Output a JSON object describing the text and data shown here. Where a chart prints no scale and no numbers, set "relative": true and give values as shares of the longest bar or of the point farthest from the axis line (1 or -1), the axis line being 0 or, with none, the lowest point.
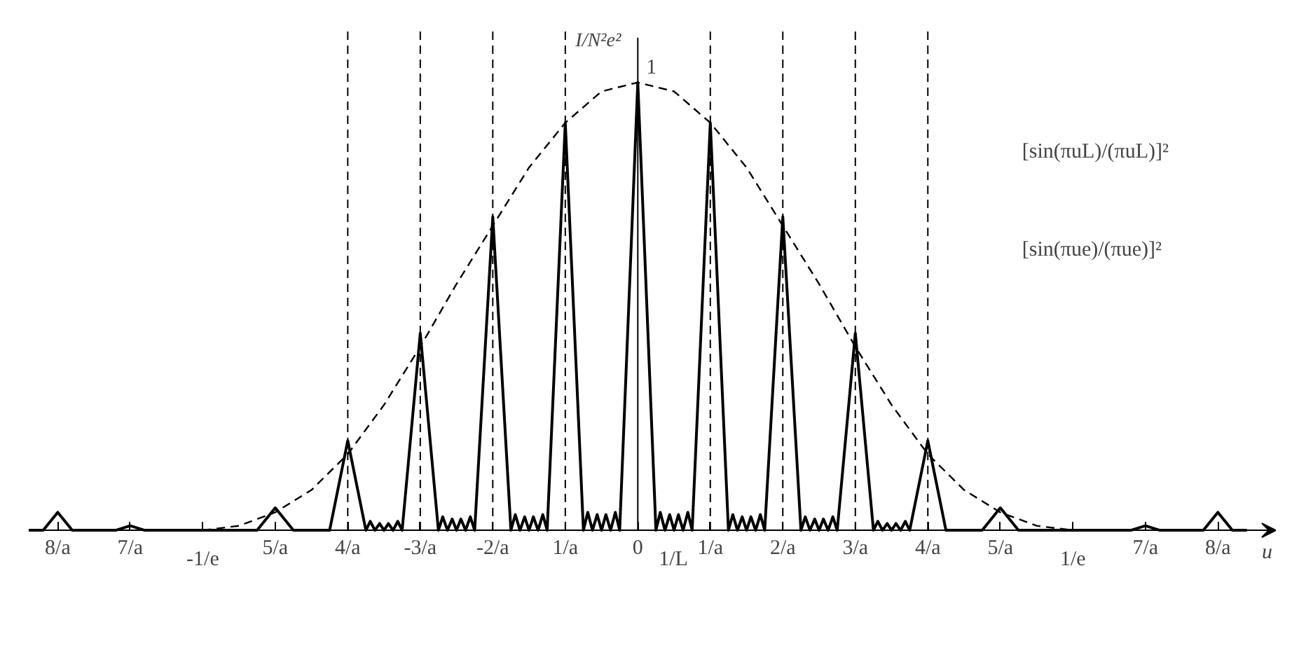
{
  "chart_data": {
    "type": "line",
    "relative": true,
    "xlabel": "u",
    "ylabel": "I/N²e²",
    "xlim": [
      -8.4,
      8.8
    ],
    "xticks": [
      {
        "value": -8,
        "label": "8/a"
      },
      {
        "value": -7,
        "label": "7/a"
      },
      {
        "value": -6,
        "label": null
      },
      {
        "value": -5,
        "label": "5/a"
      },
      {
        "value": -4,
        "label": "4/a"
      },
      {
        "value": -3,
        "label": "-3/a"
      },
      {
        "value": -2,
        "label": "-2/a"
      },
      {
        "value": -1,
        "label": "1/a"
      },
      {
        "value": 0,
        "label": "0"
      },
      {
        "value": 1,
        "label": "1/a"
      },
      {
        "value": 2,
        "label": "2/a"
      },
      {
        "value": 3,
        "label": "3/a"
      },
      {
        "value": 4,
        "label": "4/a"
      },
      {
        "value": 5,
        "label": "5/a"
      },
      {
        "value": 6,
        "label": null
      },
      {
        "value": 7,
        "label": "7/a"
      },
      {
        "value": 8,
        "label": "8/a"
      }
    ],
    "tick_labels": "x",
    "grid": false,
    "marker": "none",
    "annotations": [
      "1",
      "[sin(πuL)/(πuL)]²",
      "[sin(πue)/(πue)]²",
      {
        "text": "-1/e",
        "x": -6,
        "y": 0
      },
      {
        "text": "1/L",
        "x": 0.25,
        "y": 0
      },
      {
        "text": "1/e",
        "x": 6,
        "y": 0
      }
    ],
    "ref_lines": [
      {
        "axis": "x",
        "value": -4,
        "color": "#000000",
        "line_style": "dashed"
      },
      {
        "axis": "x",
        "value": -3,
        "color": "#000000",
        "line_style": "dashed"
      },
      {
        "axis": "x",
        "value": -2,
        "color": "#000000",
        "line_style": "dashed"
      },
      {
        "axis": "x",
        "value": -1,
        "color": "#000000",
        "line_style": "dashed"
      },
      {
        "axis": "x",
        "value": 1,
        "color": "#000000",
        "line_style": "dashed"
      },
      {
        "axis": "x",
        "value": 2,
        "color": "#000000",
        "line_style": "dashed"
      },
      {
        "axis": "x",
        "value": 3,
        "color": "#000000",
        "line_style": "dashed"
      },
      {
        "axis": "x",
        "value": 4,
        "color": "#000000",
        "line_style": "dashed"
      }
    ],
    "series": [
      {
        "color": "#000000",
        "line_style": "solid",
        "x": [
          -8.4,
          -8.2,
          -8,
          -7.8,
          -7.2,
          -7,
          -6.8,
          -5.25,
          -5,
          -4.75,
          -4.25,
          -4,
          -3.75,
          -3.69,
          -3.625,
          -3.56,
          -3.5,
          -3.44,
          -3.375,
          -3.31,
          -3.25,
          -3,
          -2.75,
          -2.69,
          -2.625,
          -2.56,
          -2.5,
          -2.44,
          -2.375,
          -2.31,
          -2.25,
          -2,
          -1.75,
          -1.69,
          -1.625,
          -1.56,
          -1.5,
          -1.44,
          -1.375,
          -1.31,
          -1.25,
          -1,
          -0.75,
          -0.69,
          -0.625,
          -0.56,
          -0.5,
          -0.44,
          -0.375,
          -0.31,
          -0.25,
          0,
          0.25,
          0.31,
          0.375,
          0.44,
          0.5,
          0.56,
          0.625,
          0.69,
          0.75,
          1,
          1.25,
          1.31,
          1.375,
          1.44,
          1.5,
          1.56,
          1.625,
          1.69,
          1.75,
          2,
          2.25,
          2.31,
          2.375,
          2.44,
          2.5,
          2.56,
          2.625,
          2.69,
          2.75,
          3,
          3.25,
          3.31,
          3.375,
          3.44,
          3.5,
          3.56,
          3.625,
          3.69,
          3.75,
          4,
          4.25,
          4.75,
          5,
          5.25,
          6.8,
          7,
          7.2,
          7.8,
          8,
          8.2,
          8.4
        ],
        "values": [
          0,
          0,
          0.04,
          0,
          0,
          0.01,
          0,
          0,
          0.05,
          0,
          0,
          0.2,
          0,
          0.02,
          0,
          0.015,
          0,
          0.015,
          0,
          0.02,
          0,
          0.44,
          0,
          0.03,
          0,
          0.025,
          0,
          0.025,
          0,
          0.03,
          0,
          0.7,
          0,
          0.035,
          0,
          0.03,
          0,
          0.03,
          0,
          0.035,
          0,
          0.91,
          0,
          0.04,
          0,
          0.035,
          0,
          0.035,
          0,
          0.04,
          0,
          1,
          0,
          0.04,
          0,
          0.035,
          0,
          0.035,
          0,
          0.04,
          0,
          0.91,
          0,
          0.035,
          0,
          0.03,
          0,
          0.03,
          0,
          0.035,
          0,
          0.7,
          0,
          0.03,
          0,
          0.025,
          0,
          0.025,
          0,
          0.03,
          0,
          0.44,
          0,
          0.02,
          0,
          0.015,
          0,
          0.015,
          0,
          0.02,
          0,
          0.2,
          0,
          0,
          0.05,
          0,
          0,
          0.01,
          0,
          0,
          0.04,
          0,
          0
        ]
      },
      {
        "color": "#000000",
        "line_style": "dashed",
        "x": [
          -6,
          -5.5,
          -5,
          -4.5,
          -4,
          -3.5,
          -3,
          -2.5,
          -2,
          -1.5,
          -1,
          -0.5,
          0,
          0.5,
          1,
          1.5,
          2,
          2.5,
          3,
          3.5,
          4,
          4.5,
          5,
          5.5,
          6
        ],
        "values": [
          0,
          0.01,
          0.04,
          0.09,
          0.17,
          0.28,
          0.41,
          0.55,
          0.68,
          0.81,
          0.91,
          0.98,
          1,
          0.98,
          0.91,
          0.81,
          0.68,
          0.55,
          0.41,
          0.28,
          0.17,
          0.09,
          0.04,
          0.01,
          0
        ]
      }
    ]
  }
}
